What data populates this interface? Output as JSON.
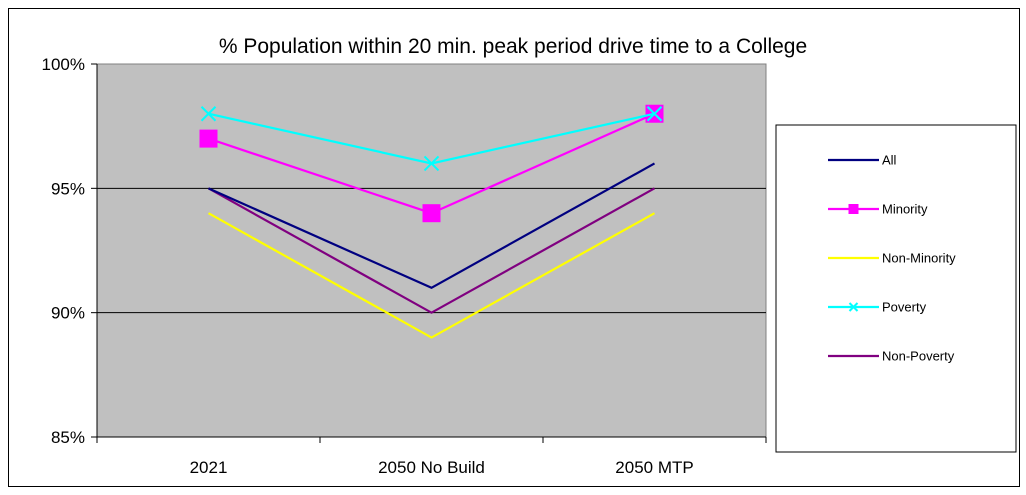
{
  "chart_data": {
    "type": "line",
    "title": "% Population within 20 min. peak period drive time to a College",
    "xlabel": "",
    "ylabel": "",
    "categories": [
      "2021",
      "2050 No Build",
      "2050 MTP"
    ],
    "yticks": [
      "85%",
      "90%",
      "95%",
      "100%"
    ],
    "ylim": [
      85,
      100
    ],
    "grid": true,
    "legend": "right",
    "series": [
      {
        "name": "All",
        "values": [
          95,
          91,
          96
        ],
        "color": "#000080",
        "marker": "none"
      },
      {
        "name": "Minority",
        "values": [
          97,
          94,
          98
        ],
        "color": "#FF00FF",
        "marker": "square"
      },
      {
        "name": "Non-Minority",
        "values": [
          94,
          89,
          94
        ],
        "color": "#FFFF00",
        "marker": "none"
      },
      {
        "name": "Poverty",
        "values": [
          98,
          96,
          98
        ],
        "color": "#00FFFF",
        "marker": "x"
      },
      {
        "name": "Non-Poverty",
        "values": [
          95,
          90,
          95
        ],
        "color": "#800080",
        "marker": "none"
      }
    ],
    "plot_background": "#C0C0C0"
  }
}
